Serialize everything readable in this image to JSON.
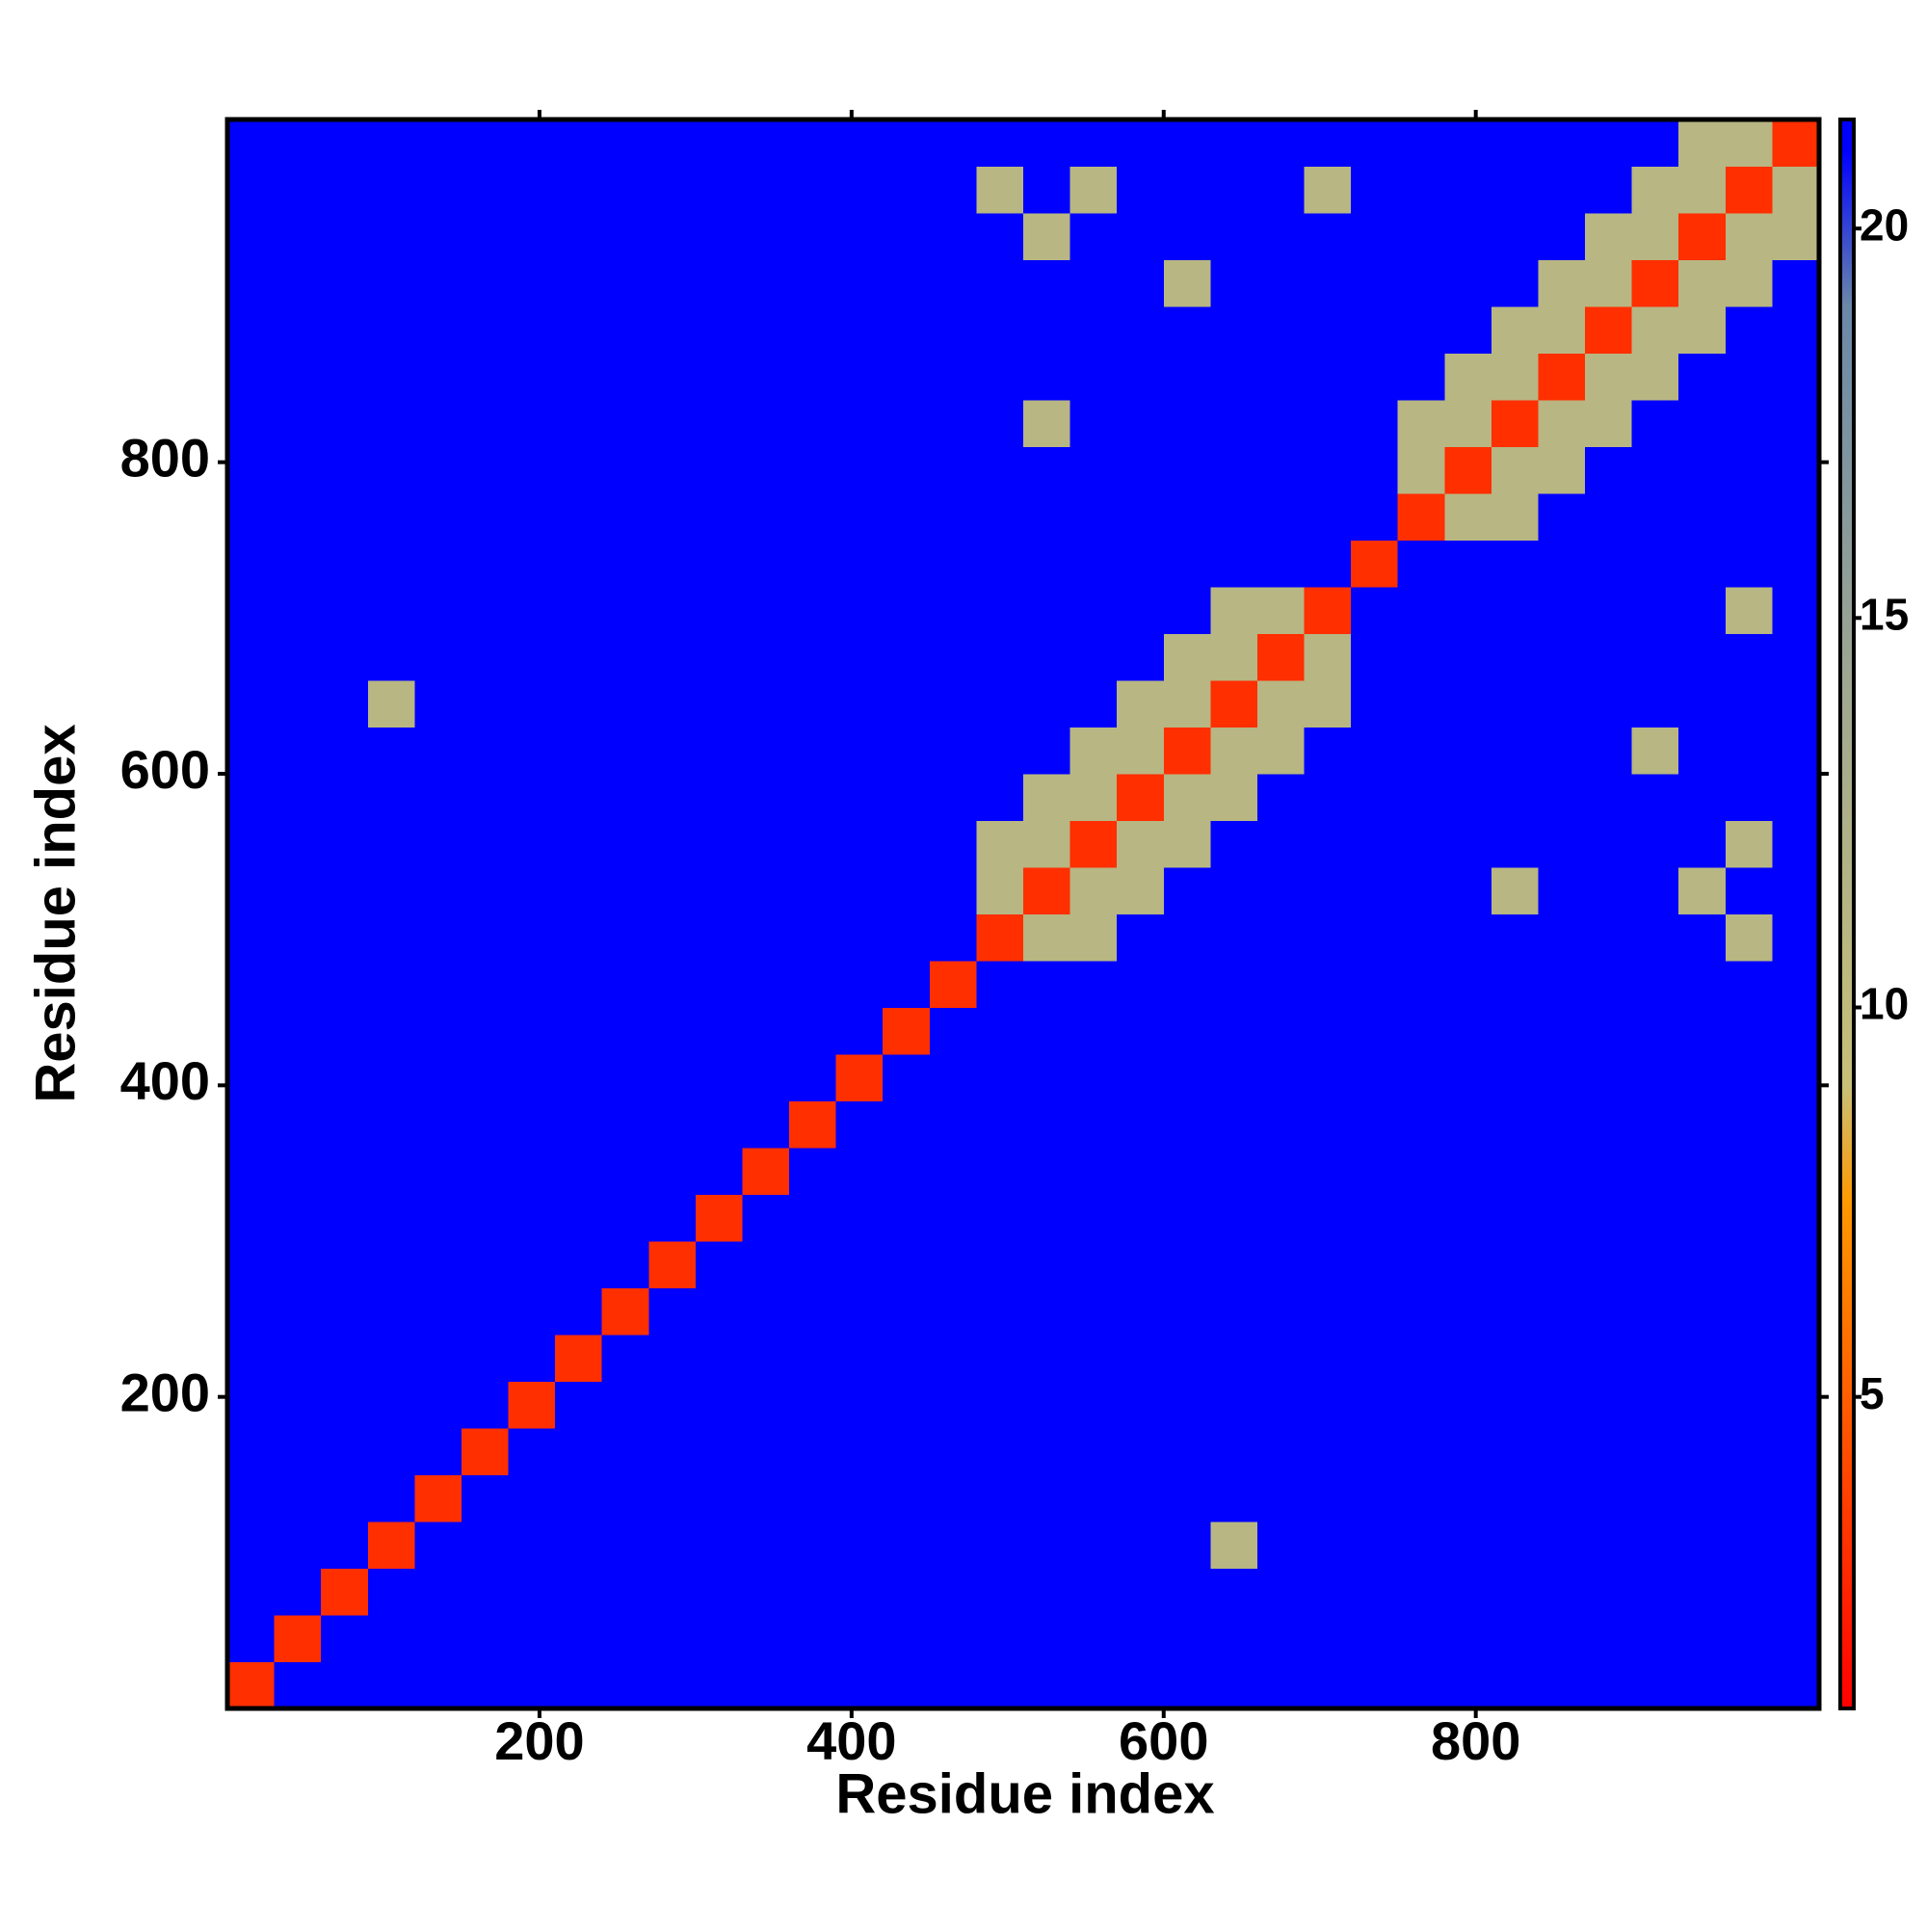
{
  "chart_data": {
    "type": "heatmap",
    "x_label": "Residue index",
    "y_label": "Residue index",
    "xlim": [
      0,
      1020
    ],
    "ylim": [
      0,
      1020
    ],
    "xticks": [
      200,
      400,
      600,
      800
    ],
    "yticks": [
      200,
      400,
      600,
      800
    ],
    "x": [
      15,
      45,
      75,
      105,
      135,
      165,
      195,
      225,
      255,
      285,
      315,
      345,
      375,
      405,
      435,
      465,
      495,
      525,
      555,
      585,
      615,
      645,
      675,
      705,
      735,
      765,
      795,
      825,
      855,
      885,
      915,
      945,
      975,
      1005
    ],
    "y": [
      15,
      45,
      75,
      105,
      135,
      165,
      195,
      225,
      255,
      285,
      315,
      345,
      375,
      405,
      435,
      465,
      495,
      525,
      555,
      585,
      615,
      645,
      675,
      705,
      735,
      765,
      795,
      825,
      855,
      885,
      915,
      945,
      975,
      1005
    ],
    "z": [
      [
        3,
        21,
        21,
        21,
        21,
        21,
        21,
        21,
        21,
        21,
        21,
        21,
        21,
        21,
        21,
        21,
        21,
        21,
        21,
        21,
        21,
        21,
        21,
        21,
        21,
        21,
        21,
        21,
        21,
        21,
        21,
        21,
        21,
        21
      ],
      [
        21,
        3,
        21,
        21,
        21,
        21,
        21,
        21,
        21,
        21,
        21,
        21,
        21,
        21,
        21,
        21,
        21,
        21,
        21,
        21,
        21,
        21,
        21,
        21,
        21,
        21,
        21,
        21,
        21,
        21,
        21,
        21,
        21,
        21
      ],
      [
        21,
        21,
        3,
        21,
        21,
        21,
        21,
        21,
        21,
        21,
        21,
        21,
        21,
        21,
        21,
        21,
        21,
        21,
        21,
        21,
        21,
        21,
        21,
        21,
        21,
        21,
        21,
        21,
        21,
        21,
        21,
        21,
        21,
        21
      ],
      [
        21,
        21,
        21,
        3,
        21,
        21,
        21,
        21,
        21,
        21,
        21,
        21,
        21,
        21,
        21,
        21,
        21,
        21,
        21,
        21,
        21,
        11,
        21,
        21,
        21,
        21,
        21,
        21,
        21,
        21,
        21,
        21,
        21,
        21
      ],
      [
        21,
        21,
        21,
        21,
        3,
        21,
        21,
        21,
        21,
        21,
        21,
        21,
        21,
        21,
        21,
        21,
        21,
        21,
        21,
        21,
        21,
        21,
        21,
        21,
        21,
        21,
        21,
        21,
        21,
        21,
        21,
        21,
        21,
        21
      ],
      [
        21,
        21,
        21,
        21,
        21,
        3,
        21,
        21,
        21,
        21,
        21,
        21,
        21,
        21,
        21,
        21,
        21,
        21,
        21,
        21,
        21,
        21,
        21,
        21,
        21,
        21,
        21,
        21,
        21,
        21,
        21,
        21,
        21,
        21
      ],
      [
        21,
        21,
        21,
        21,
        21,
        21,
        3,
        21,
        21,
        21,
        21,
        21,
        21,
        21,
        21,
        21,
        21,
        21,
        21,
        21,
        21,
        21,
        21,
        21,
        21,
        21,
        21,
        21,
        21,
        21,
        21,
        21,
        21,
        21
      ],
      [
        21,
        21,
        21,
        21,
        21,
        21,
        21,
        3,
        21,
        21,
        21,
        21,
        21,
        21,
        21,
        21,
        21,
        21,
        21,
        21,
        21,
        21,
        21,
        21,
        21,
        21,
        21,
        21,
        21,
        21,
        21,
        21,
        21,
        21
      ],
      [
        21,
        21,
        21,
        21,
        21,
        21,
        21,
        21,
        3,
        21,
        21,
        21,
        21,
        21,
        21,
        21,
        21,
        21,
        21,
        21,
        21,
        21,
        21,
        21,
        21,
        21,
        21,
        21,
        21,
        21,
        21,
        21,
        21,
        21
      ],
      [
        21,
        21,
        21,
        21,
        21,
        21,
        21,
        21,
        21,
        3,
        21,
        21,
        21,
        21,
        21,
        21,
        21,
        21,
        21,
        21,
        21,
        21,
        21,
        21,
        21,
        21,
        21,
        21,
        21,
        21,
        21,
        21,
        21,
        21
      ],
      [
        21,
        21,
        21,
        21,
        21,
        21,
        21,
        21,
        21,
        21,
        3,
        21,
        21,
        21,
        21,
        21,
        21,
        21,
        21,
        21,
        21,
        21,
        21,
        21,
        21,
        21,
        21,
        21,
        21,
        21,
        21,
        21,
        21,
        21
      ],
      [
        21,
        21,
        21,
        21,
        21,
        21,
        21,
        21,
        21,
        21,
        21,
        3,
        21,
        21,
        21,
        21,
        21,
        21,
        21,
        21,
        21,
        21,
        21,
        21,
        21,
        21,
        21,
        21,
        21,
        21,
        21,
        21,
        21,
        21
      ],
      [
        21,
        21,
        21,
        21,
        21,
        21,
        21,
        21,
        21,
        21,
        21,
        21,
        3,
        21,
        21,
        21,
        21,
        21,
        21,
        21,
        21,
        21,
        21,
        21,
        21,
        21,
        21,
        21,
        21,
        21,
        21,
        21,
        21,
        21
      ],
      [
        21,
        21,
        21,
        21,
        21,
        21,
        21,
        21,
        21,
        21,
        21,
        21,
        21,
        3,
        21,
        21,
        21,
        21,
        21,
        21,
        21,
        21,
        21,
        21,
        21,
        21,
        21,
        21,
        21,
        21,
        21,
        21,
        21,
        21
      ],
      [
        21,
        21,
        21,
        21,
        21,
        21,
        21,
        21,
        21,
        21,
        21,
        21,
        21,
        21,
        3,
        21,
        21,
        21,
        21,
        21,
        21,
        21,
        21,
        21,
        21,
        21,
        21,
        21,
        21,
        21,
        21,
        21,
        21,
        21
      ],
      [
        21,
        21,
        21,
        21,
        21,
        21,
        21,
        21,
        21,
        21,
        21,
        21,
        21,
        21,
        21,
        3,
        21,
        21,
        21,
        21,
        21,
        21,
        21,
        21,
        21,
        21,
        21,
        21,
        21,
        21,
        21,
        21,
        21,
        21
      ],
      [
        21,
        21,
        21,
        21,
        21,
        21,
        21,
        21,
        21,
        21,
        21,
        21,
        21,
        21,
        21,
        21,
        3,
        11,
        11,
        21,
        21,
        21,
        21,
        21,
        21,
        21,
        21,
        21,
        21,
        21,
        21,
        21,
        11,
        21
      ],
      [
        21,
        21,
        21,
        21,
        21,
        21,
        21,
        21,
        21,
        21,
        21,
        21,
        21,
        21,
        21,
        21,
        11,
        3,
        11,
        11,
        21,
        21,
        21,
        21,
        21,
        21,
        21,
        11,
        21,
        21,
        21,
        11,
        21,
        21
      ],
      [
        21,
        21,
        21,
        21,
        21,
        21,
        21,
        21,
        21,
        21,
        21,
        21,
        21,
        21,
        21,
        21,
        11,
        11,
        3,
        11,
        11,
        21,
        21,
        21,
        21,
        21,
        21,
        21,
        21,
        21,
        21,
        21,
        11,
        21
      ],
      [
        21,
        21,
        21,
        21,
        21,
        21,
        21,
        21,
        21,
        21,
        21,
        21,
        21,
        21,
        21,
        21,
        21,
        11,
        11,
        3,
        11,
        11,
        21,
        21,
        21,
        21,
        21,
        21,
        21,
        21,
        21,
        21,
        21,
        21
      ],
      [
        21,
        21,
        21,
        21,
        21,
        21,
        21,
        21,
        21,
        21,
        21,
        21,
        21,
        21,
        21,
        21,
        21,
        21,
        11,
        11,
        3,
        11,
        11,
        21,
        21,
        21,
        21,
        21,
        21,
        21,
        11,
        21,
        21,
        21
      ],
      [
        21,
        21,
        21,
        11,
        21,
        21,
        21,
        21,
        21,
        21,
        21,
        21,
        21,
        21,
        21,
        21,
        21,
        21,
        21,
        11,
        11,
        3,
        11,
        11,
        21,
        21,
        21,
        21,
        21,
        21,
        21,
        21,
        21,
        21
      ],
      [
        21,
        21,
        21,
        21,
        21,
        21,
        21,
        21,
        21,
        21,
        21,
        21,
        21,
        21,
        21,
        21,
        21,
        21,
        21,
        21,
        11,
        11,
        3,
        11,
        21,
        21,
        21,
        21,
        21,
        21,
        21,
        21,
        21,
        21
      ],
      [
        21,
        21,
        21,
        21,
        21,
        21,
        21,
        21,
        21,
        21,
        21,
        21,
        21,
        21,
        21,
        21,
        21,
        21,
        21,
        21,
        21,
        11,
        11,
        3,
        21,
        21,
        21,
        21,
        21,
        21,
        21,
        21,
        11,
        21
      ],
      [
        21,
        21,
        21,
        21,
        21,
        21,
        21,
        21,
        21,
        21,
        21,
        21,
        21,
        21,
        21,
        21,
        21,
        21,
        21,
        21,
        21,
        21,
        21,
        21,
        3,
        21,
        21,
        21,
        21,
        21,
        21,
        21,
        21,
        21
      ],
      [
        21,
        21,
        21,
        21,
        21,
        21,
        21,
        21,
        21,
        21,
        21,
        21,
        21,
        21,
        21,
        21,
        21,
        21,
        21,
        21,
        21,
        21,
        21,
        21,
        21,
        3,
        11,
        11,
        21,
        21,
        21,
        21,
        21,
        21
      ],
      [
        21,
        21,
        21,
        21,
        21,
        21,
        21,
        21,
        21,
        21,
        21,
        21,
        21,
        21,
        21,
        21,
        21,
        21,
        21,
        21,
        21,
        21,
        21,
        21,
        21,
        11,
        3,
        11,
        11,
        21,
        21,
        21,
        21,
        21
      ],
      [
        21,
        21,
        21,
        21,
        21,
        21,
        21,
        21,
        21,
        21,
        21,
        21,
        21,
        21,
        21,
        21,
        21,
        11,
        21,
        21,
        21,
        21,
        21,
        21,
        21,
        11,
        11,
        3,
        11,
        11,
        21,
        21,
        21,
        21
      ],
      [
        21,
        21,
        21,
        21,
        21,
        21,
        21,
        21,
        21,
        21,
        21,
        21,
        21,
        21,
        21,
        21,
        21,
        21,
        21,
        21,
        21,
        21,
        21,
        21,
        21,
        21,
        11,
        11,
        3,
        11,
        11,
        21,
        21,
        21
      ],
      [
        21,
        21,
        21,
        21,
        21,
        21,
        21,
        21,
        21,
        21,
        21,
        21,
        21,
        21,
        21,
        21,
        21,
        21,
        21,
        21,
        21,
        21,
        21,
        21,
        21,
        21,
        21,
        11,
        11,
        3,
        11,
        11,
        21,
        21
      ],
      [
        21,
        21,
        21,
        21,
        21,
        21,
        21,
        21,
        21,
        21,
        21,
        21,
        21,
        21,
        21,
        21,
        21,
        21,
        21,
        21,
        11,
        21,
        21,
        21,
        21,
        21,
        21,
        21,
        11,
        11,
        3,
        11,
        11,
        21
      ],
      [
        21,
        21,
        21,
        21,
        21,
        21,
        21,
        21,
        21,
        21,
        21,
        21,
        21,
        21,
        21,
        21,
        21,
        11,
        21,
        21,
        21,
        21,
        21,
        21,
        21,
        21,
        21,
        21,
        21,
        11,
        11,
        3,
        11,
        11
      ],
      [
        21,
        21,
        21,
        21,
        21,
        21,
        21,
        21,
        21,
        21,
        21,
        21,
        21,
        21,
        21,
        21,
        11,
        21,
        11,
        21,
        21,
        21,
        21,
        11,
        21,
        21,
        21,
        21,
        21,
        21,
        11,
        11,
        3,
        11
      ],
      [
        21,
        21,
        21,
        21,
        21,
        21,
        21,
        21,
        21,
        21,
        21,
        21,
        21,
        21,
        21,
        21,
        21,
        21,
        21,
        21,
        21,
        21,
        21,
        21,
        21,
        21,
        21,
        21,
        21,
        21,
        21,
        11,
        11,
        3
      ]
    ],
    "colorscale": [
      [
        1,
        "#ff0000"
      ],
      [
        7.5,
        "#ff9900"
      ],
      [
        9,
        "#c8c078"
      ],
      [
        14,
        "#a0a890"
      ],
      [
        19,
        "#6a88a8"
      ],
      [
        21,
        "#0000ff"
      ],
      [
        21.4,
        "#0000ff"
      ]
    ],
    "colorbar_lim": [
      1,
      21.4
    ],
    "colorbar_ticks": [
      5,
      10,
      15,
      20
    ]
  }
}
